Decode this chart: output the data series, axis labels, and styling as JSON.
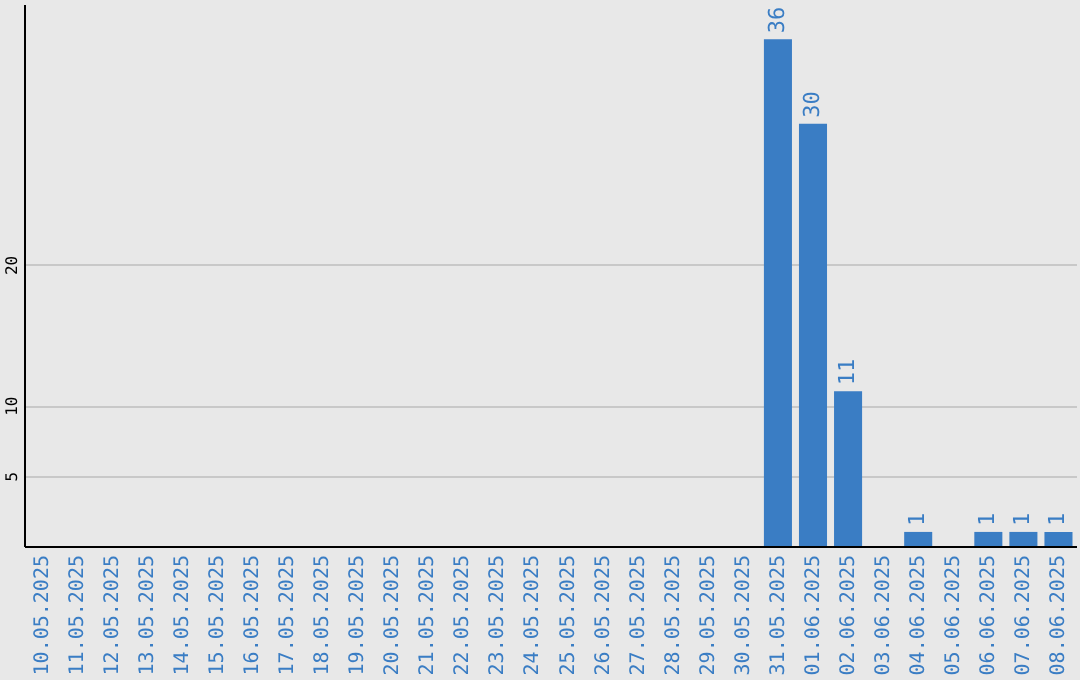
{
  "chart_data": {
    "type": "bar",
    "categories": [
      "10.05.2025",
      "11.05.2025",
      "12.05.2025",
      "13.05.2025",
      "14.05.2025",
      "15.05.2025",
      "16.05.2025",
      "17.05.2025",
      "18.05.2025",
      "19.05.2025",
      "20.05.2025",
      "21.05.2025",
      "22.05.2025",
      "23.05.2025",
      "24.05.2025",
      "25.05.2025",
      "26.05.2025",
      "27.05.2025",
      "28.05.2025",
      "29.05.2025",
      "30.05.2025",
      "31.05.2025",
      "01.06.2025",
      "02.06.2025",
      "03.06.2025",
      "04.06.2025",
      "05.06.2025",
      "06.06.2025",
      "07.06.2025",
      "08.06.2025"
    ],
    "values": [
      0,
      0,
      0,
      0,
      0,
      0,
      0,
      0,
      0,
      0,
      0,
      0,
      0,
      0,
      0,
      0,
      0,
      0,
      0,
      0,
      0,
      36,
      30,
      11,
      0,
      1,
      0,
      1,
      1,
      1
    ],
    "value_labels": [
      null,
      null,
      null,
      null,
      null,
      null,
      null,
      null,
      null,
      null,
      null,
      null,
      null,
      null,
      null,
      null,
      null,
      null,
      null,
      null,
      null,
      "36",
      "30",
      "11",
      null,
      "1",
      null,
      "1",
      "1",
      "1"
    ],
    "color": "#3a7dc4",
    "ylim": [
      0,
      38.5
    ],
    "yticks": [
      5,
      10,
      20
    ],
    "grid": "y"
  }
}
